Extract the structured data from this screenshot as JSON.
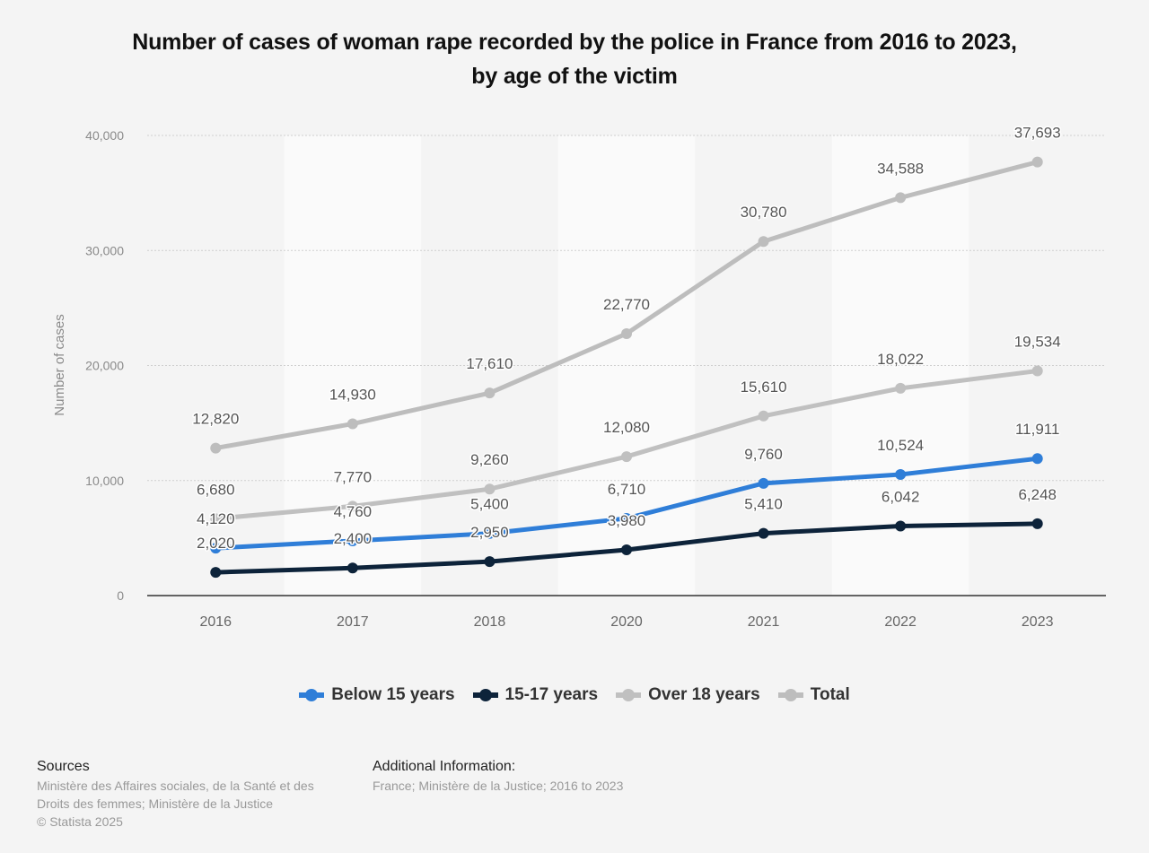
{
  "chart_data": {
    "type": "line",
    "title": "Number of cases of woman rape recorded by the police in France from 2016 to 2023, by age of the victim",
    "title_lines": [
      "Number of cases of woman rape recorded by the police in France from 2016 to 2023,",
      "by age of the victim"
    ],
    "xlabel": "",
    "ylabel": "Number of cases",
    "categories": [
      "2016",
      "2017",
      "2018",
      "2020",
      "2021",
      "2022",
      "2023"
    ],
    "ylim": [
      0,
      40000
    ],
    "yticks": [
      0,
      10000,
      20000,
      30000,
      40000
    ],
    "ytick_labels": [
      "0",
      "10,000",
      "20,000",
      "30,000",
      "40,000"
    ],
    "grid": true,
    "legend_position": "bottom",
    "series": [
      {
        "name": "Below 15 years",
        "color": "#2f7ed8",
        "values": [
          4120,
          4760,
          5400,
          6710,
          9760,
          10524,
          11911
        ],
        "labels": [
          "4,120",
          "4,760",
          "5,400",
          "6,710",
          "9,760",
          "10,524",
          "11,911"
        ]
      },
      {
        "name": "15-17 years",
        "color": "#0d233a",
        "values": [
          2020,
          2400,
          2950,
          3980,
          5410,
          6042,
          6248
        ],
        "labels": [
          "2,020",
          "2,400",
          "2,950",
          "3,980",
          "5,410",
          "6,042",
          "6,248"
        ]
      },
      {
        "name": "Over 18 years",
        "color": "#c0c0c0",
        "values": [
          6680,
          7770,
          9260,
          12080,
          15610,
          18022,
          19534
        ],
        "labels": [
          "6,680",
          "7,770",
          "9,260",
          "12,080",
          "15,610",
          "18,022",
          "19,534"
        ]
      },
      {
        "name": "Total",
        "color": "#bdbdbd",
        "values": [
          12820,
          14930,
          17610,
          22770,
          30780,
          34588,
          37693
        ],
        "labels": [
          "12,820",
          "14,930",
          "17,610",
          "22,770",
          "30,780",
          "34,588",
          "37,693"
        ]
      }
    ]
  },
  "footer": {
    "sources_heading": "Sources",
    "sources_line1": "Ministère des Affaires sociales, de la Santé et des",
    "sources_line2": "Droits des femmes; Ministère de la Justice",
    "copyright": "© Statista 2025",
    "additional_heading": "Additional Information:",
    "additional_text": "France; Ministère de la Justice; 2016 to 2023"
  }
}
